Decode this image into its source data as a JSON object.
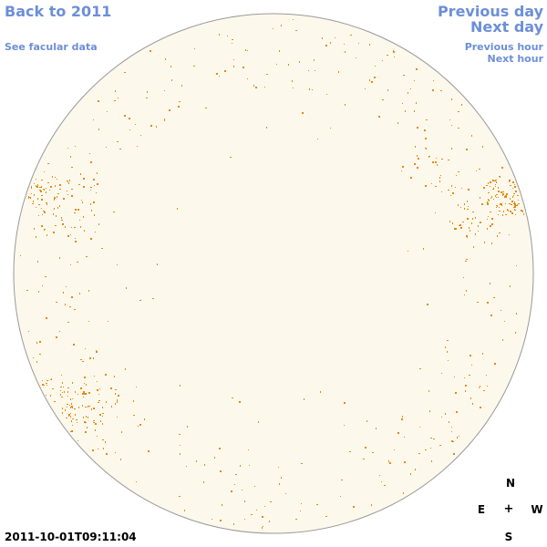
{
  "nav": {
    "back_label": "Back to 2011",
    "facular_label": "See facular data",
    "previous_day_label": "Previous day",
    "next_day_label": "Next day",
    "previous_hour_label": "Previous hour",
    "next_hour_label": "Next hour"
  },
  "compass": {
    "north": "N",
    "east": "E",
    "center": "+",
    "west": "W",
    "south": "S"
  },
  "timestamp": "2011-10-01T09:11:04",
  "colors": {
    "link": "#6c8fd8",
    "disk_fill": "#fdf8ec",
    "disk_outline": "#999999",
    "facula_marks": "#e58a0c"
  }
}
